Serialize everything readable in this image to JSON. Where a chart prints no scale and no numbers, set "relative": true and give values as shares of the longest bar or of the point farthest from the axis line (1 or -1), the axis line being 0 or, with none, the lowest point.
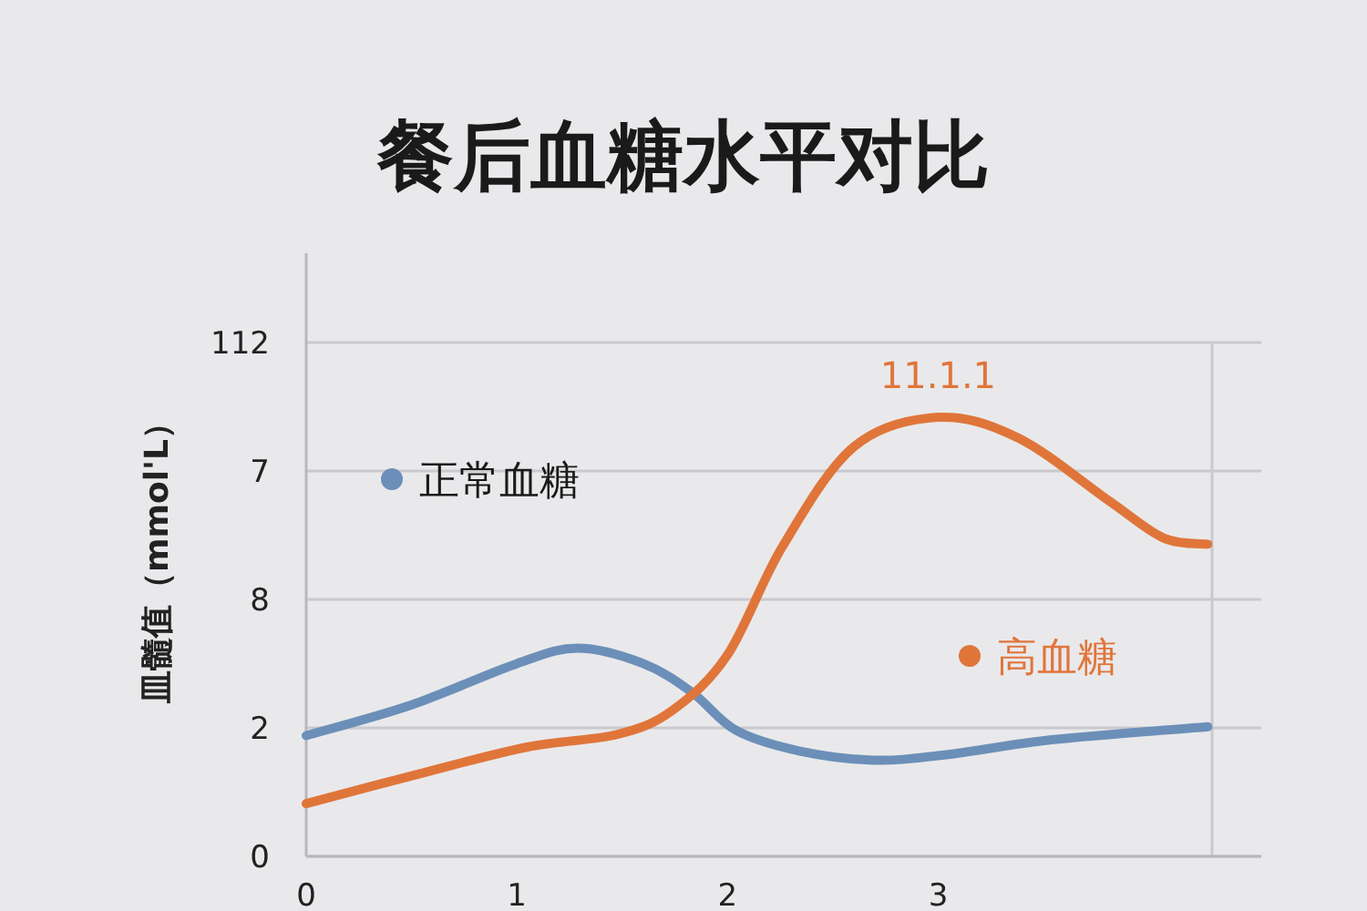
{
  "chart_data": {
    "type": "line",
    "title": "餐后血糖水平对比",
    "ylabel": "皿髓值（mmol'L）",
    "relative": true,
    "xlim": [
      0,
      4.3
    ],
    "xticks": [
      0,
      1,
      2,
      3
    ],
    "grid": "y",
    "legend": "top",
    "marker": "none",
    "line_style": "solid",
    "series": [
      {
        "name": "正常血糖",
        "color": "#6b8fb8",
        "x": [
          0,
          0.5,
          1.0,
          1.29,
          1.6,
          1.83,
          2.04,
          2.34,
          2.69,
          3.03,
          3.55,
          4.28
        ],
        "values": [
          0.275,
          0.345,
          0.439,
          0.474,
          0.439,
          0.374,
          0.287,
          0.24,
          0.219,
          0.231,
          0.266,
          0.295
        ]
      },
      {
        "name": "高血糖",
        "color": "#e0753a",
        "x": [
          0,
          0.53,
          1.05,
          1.48,
          1.74,
          2.0,
          2.26,
          2.6,
          3.0,
          3.38,
          3.81,
          4.07,
          4.28
        ],
        "values": [
          0.12,
          0.187,
          0.249,
          0.278,
          0.333,
          0.459,
          0.705,
          0.933,
          1,
          0.953,
          0.81,
          0.725,
          0.711
        ]
      }
    ],
    "annotations": [
      {
        "text": "11.1.1",
        "x": 3,
        "y": 1
      },
      "0",
      "2",
      "8",
      "7",
      "112"
    ]
  }
}
